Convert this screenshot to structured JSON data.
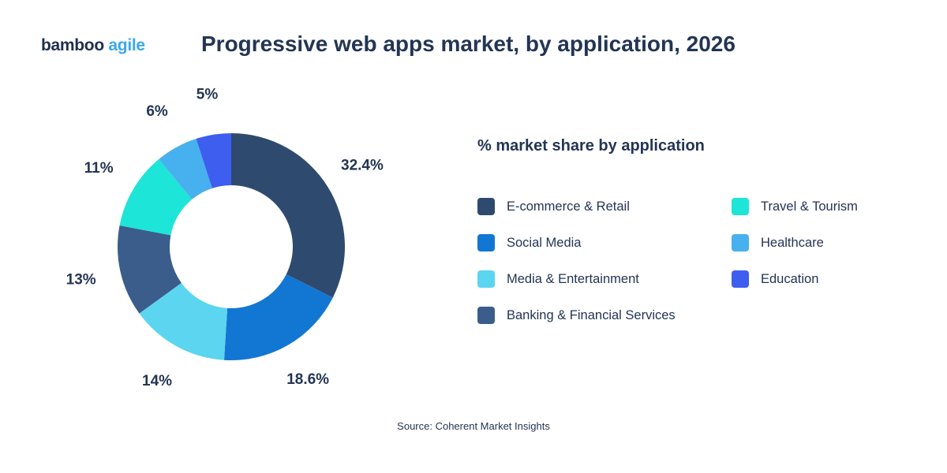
{
  "brand": {
    "part1": "bamboo",
    "part2": "agile"
  },
  "source": "Source: Coherent Market Insights",
  "chart_data": {
    "type": "pie",
    "variant": "donut",
    "title": "Progressive web apps market, by application, 2026",
    "legend_title": "% market share by application",
    "legend_placement": "right",
    "categories": [
      "E-commerce & Retail",
      "Social Media",
      "Media & Entertainment",
      "Banking & Financial Services",
      "Travel & Tourism",
      "Healthcare",
      "Education"
    ],
    "values": [
      32.4,
      18.6,
      14,
      13,
      11,
      6,
      5
    ],
    "labels": [
      "32.4%",
      "18.6%",
      "14%",
      "13%",
      "11%",
      "6%",
      "5%"
    ],
    "colors": [
      "#2e4a6f",
      "#1276d3",
      "#5bd5f0",
      "#3a5d8c",
      "#1de5d7",
      "#47b0ee",
      "#3e5ef0"
    ]
  }
}
